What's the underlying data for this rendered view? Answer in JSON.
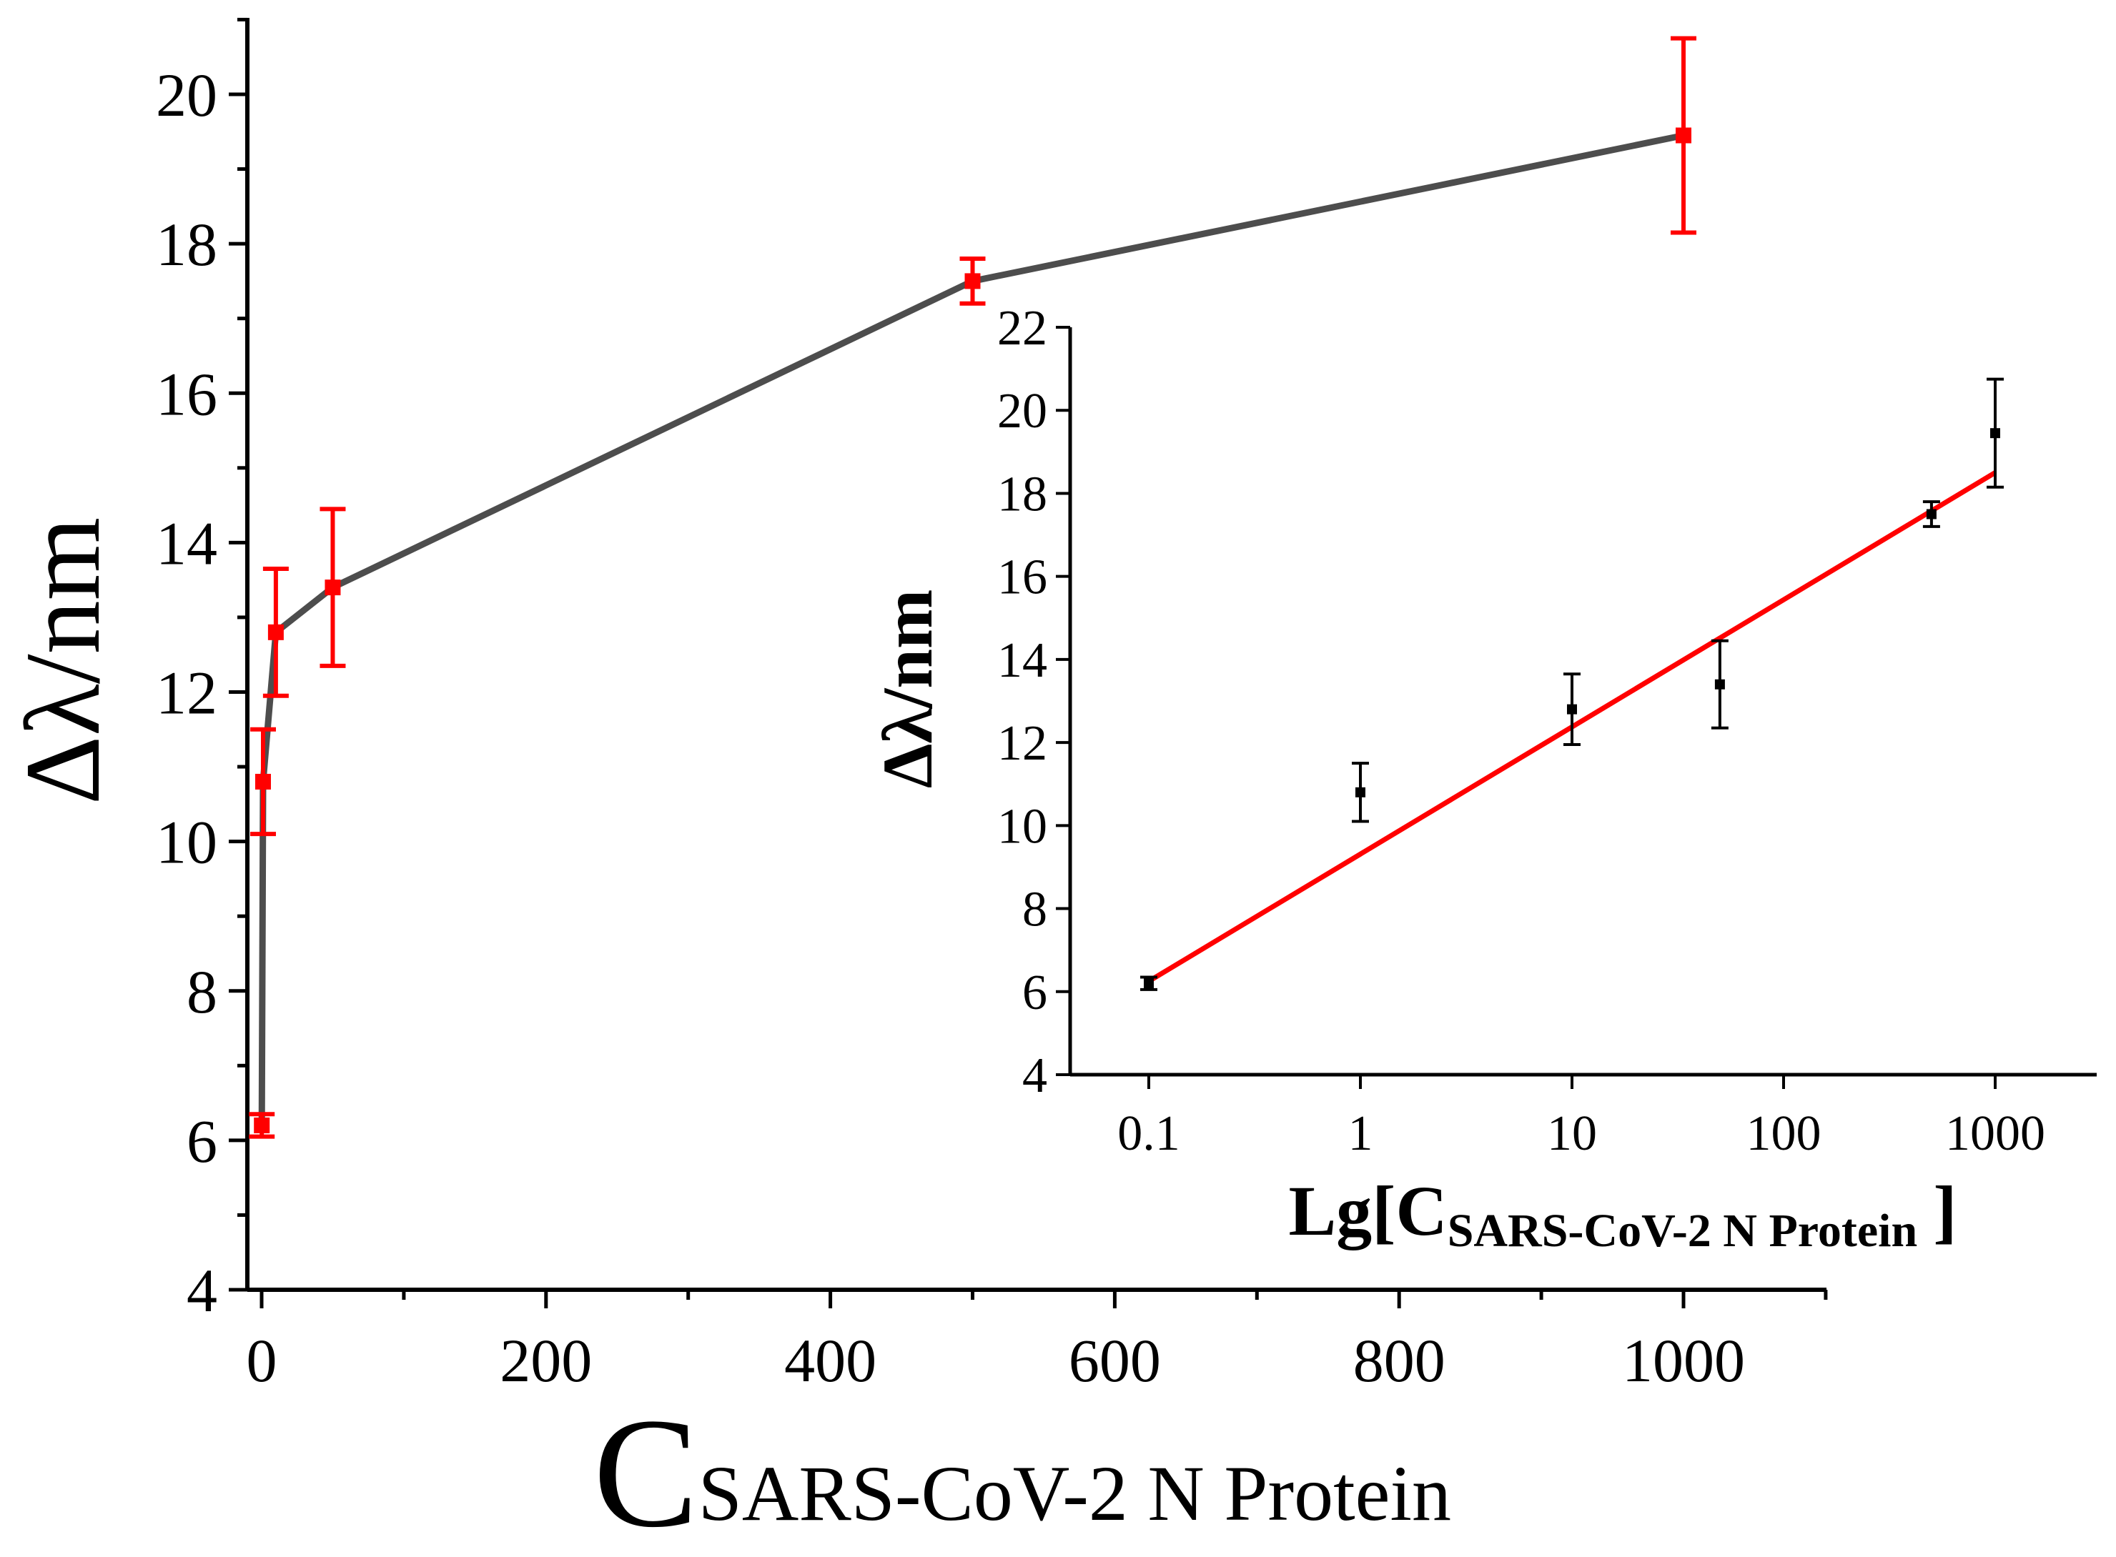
{
  "chart_data": [
    {
      "type": "line",
      "title": "",
      "xlabel_main": "C",
      "xlabel_sub": "SARS-CoV-2 N Protein",
      "ylabel": "Δλ/nm",
      "xlim": [
        -10,
        1100
      ],
      "ylim": [
        4,
        21
      ],
      "x_ticks": [
        0,
        200,
        400,
        600,
        800,
        1000
      ],
      "x_tick_labels": [
        "0",
        "200",
        "400",
        "600",
        "800",
        "1000"
      ],
      "y_ticks": [
        4,
        6,
        8,
        10,
        12,
        14,
        16,
        18,
        20
      ],
      "y_tick_labels": [
        "4",
        "6",
        "8",
        "10",
        "12",
        "14",
        "16",
        "18",
        "20"
      ],
      "line_color": "#4d4d4d",
      "marker_color": "#ff0000",
      "series": [
        {
          "name": "Δλ",
          "x": [
            0.1,
            1,
            10,
            50,
            500,
            1000
          ],
          "y": [
            6.2,
            10.8,
            12.8,
            13.4,
            17.5,
            19.45
          ],
          "error": [
            0.15,
            0.7,
            0.85,
            1.05,
            0.3,
            1.3
          ]
        }
      ]
    },
    {
      "type": "scatter",
      "inset": true,
      "title": "",
      "xlabel_main": "Lg[C",
      "xlabel_sub": "SARS-CoV-2 N Protein",
      "xlabel_end": "]",
      "ylabel": "Δλ/nm",
      "xscale": "log",
      "xlim": [
        0.04,
        3000
      ],
      "ylim": [
        4,
        22
      ],
      "x_ticks": [
        0.1,
        1,
        10,
        100,
        1000
      ],
      "x_tick_labels": [
        "0.1",
        "1",
        "10",
        "100",
        "1000"
      ],
      "y_ticks": [
        4,
        6,
        8,
        10,
        12,
        14,
        16,
        18,
        20,
        22
      ],
      "y_tick_labels": [
        "4",
        "6",
        "8",
        "10",
        "12",
        "14",
        "16",
        "18",
        "20",
        "22"
      ],
      "marker_color": "#000000",
      "fit_color": "#ff0000",
      "series": [
        {
          "name": "Δλ",
          "x": [
            0.1,
            1,
            10,
            50,
            500,
            1000
          ],
          "y": [
            6.2,
            10.8,
            12.8,
            13.4,
            17.5,
            19.45
          ],
          "error": [
            0.15,
            0.7,
            0.85,
            1.05,
            0.3,
            1.3
          ]
        }
      ],
      "fit": {
        "x": [
          0.1,
          1000
        ],
        "y": [
          6.25,
          18.5
        ]
      }
    }
  ]
}
